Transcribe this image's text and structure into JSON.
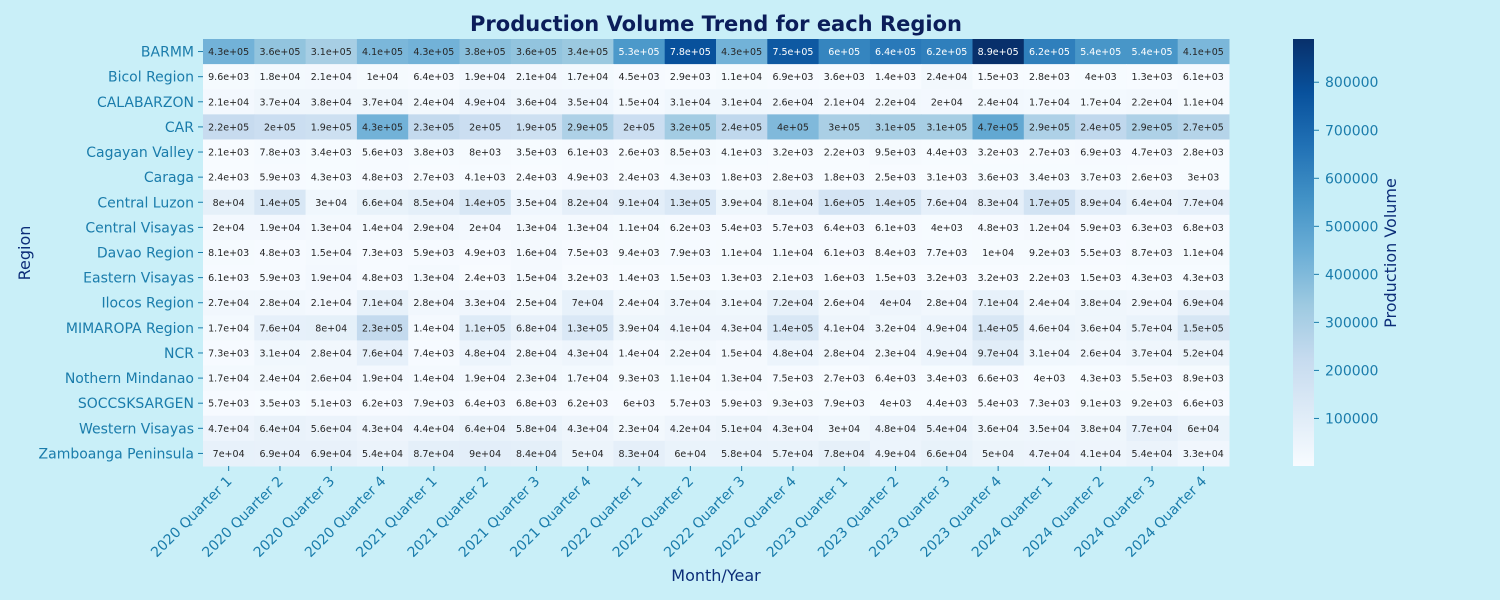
{
  "chart_data": {
    "type": "heatmap",
    "title": "Production Volume Trend for each Region",
    "xlabel": "Month/Year",
    "ylabel": "Region",
    "colorbar_label": "Production Volume",
    "colorbar_ticks": [
      "100000",
      "200000",
      "300000",
      "400000",
      "500000",
      "600000",
      "700000",
      "800000"
    ],
    "colorbar_tick_values": [
      100000,
      200000,
      300000,
      400000,
      500000,
      600000,
      700000,
      800000
    ],
    "vmin": 1000,
    "vmax": 890000,
    "colormap": "Blues",
    "x_categories": [
      "2020 Quarter 1",
      "2020 Quarter 2",
      "2020 Quarter 3",
      "2020 Quarter 4",
      "2021 Quarter 1",
      "2021 Quarter 2",
      "2021 Quarter 3",
      "2021 Quarter 4",
      "2022 Quarter 1",
      "2022 Quarter 2",
      "2022 Quarter 3",
      "2022 Quarter 4",
      "2023 Quarter 1",
      "2023 Quarter 2",
      "2023 Quarter 3",
      "2023 Quarter 4",
      "2024 Quarter 1",
      "2024 Quarter 2",
      "2024 Quarter 3",
      "2024 Quarter 4"
    ],
    "y_categories": [
      "BARMM",
      "Bicol Region",
      "CALABARZON",
      "CAR",
      "Cagayan Valley",
      "Caraga",
      "Central Luzon",
      "Central Visayas",
      "Davao Region",
      "Eastern Visayas",
      "Ilocos Region",
      "MIMAROPA Region",
      "NCR",
      "Nothern Mindanao",
      "SOCCSKSARGEN",
      "Western Visayas",
      "Zamboanga Peninsula"
    ],
    "annotations": [
      [
        "4.3e+05",
        "3.6e+05",
        "3.1e+05",
        "4.1e+05",
        "4.3e+05",
        "3.8e+05",
        "3.6e+05",
        "3.4e+05",
        "5.3e+05",
        "7.8e+05",
        "4.3e+05",
        "7.5e+05",
        "6e+05",
        "6.4e+05",
        "6.2e+05",
        "8.9e+05",
        "6.2e+05",
        "5.4e+05",
        "5.4e+05",
        "4.1e+05"
      ],
      [
        "9.6e+03",
        "1.8e+04",
        "2.1e+04",
        "1e+04",
        "6.4e+03",
        "1.9e+04",
        "2.1e+04",
        "1.7e+04",
        "4.5e+03",
        "2.9e+03",
        "1.1e+04",
        "6.9e+03",
        "3.6e+03",
        "1.4e+03",
        "2.4e+04",
        "1.5e+03",
        "2.8e+03",
        "4e+03",
        "1.3e+03",
        "6.1e+03"
      ],
      [
        "2.1e+04",
        "3.7e+04",
        "3.8e+04",
        "3.7e+04",
        "2.4e+04",
        "4.9e+04",
        "3.6e+04",
        "3.5e+04",
        "1.5e+04",
        "3.1e+04",
        "3.1e+04",
        "2.6e+04",
        "2.1e+04",
        "2.2e+04",
        "2e+04",
        "2.4e+04",
        "1.7e+04",
        "1.7e+04",
        "2.2e+04",
        "1.1e+04"
      ],
      [
        "2.2e+05",
        "2e+05",
        "1.9e+05",
        "4.3e+05",
        "2.3e+05",
        "2e+05",
        "1.9e+05",
        "2.9e+05",
        "2e+05",
        "3.2e+05",
        "2.4e+05",
        "4e+05",
        "3e+05",
        "3.1e+05",
        "3.1e+05",
        "4.7e+05",
        "2.9e+05",
        "2.4e+05",
        "2.9e+05",
        "2.7e+05"
      ],
      [
        "2.1e+03",
        "7.8e+03",
        "3.4e+03",
        "5.6e+03",
        "3.8e+03",
        "8e+03",
        "3.5e+03",
        "6.1e+03",
        "2.6e+03",
        "8.5e+03",
        "4.1e+03",
        "3.2e+03",
        "2.2e+03",
        "9.5e+03",
        "4.4e+03",
        "3.2e+03",
        "2.7e+03",
        "6.9e+03",
        "4.7e+03",
        "2.8e+03"
      ],
      [
        "2.4e+03",
        "5.9e+03",
        "4.3e+03",
        "4.8e+03",
        "2.7e+03",
        "4.1e+03",
        "2.4e+03",
        "4.9e+03",
        "2.4e+03",
        "4.3e+03",
        "1.8e+03",
        "2.8e+03",
        "1.8e+03",
        "2.5e+03",
        "3.1e+03",
        "3.6e+03",
        "3.4e+03",
        "3.7e+03",
        "2.6e+03",
        "3e+03"
      ],
      [
        "8e+04",
        "1.4e+05",
        "3e+04",
        "6.6e+04",
        "8.5e+04",
        "1.4e+05",
        "3.5e+04",
        "8.2e+04",
        "9.1e+04",
        "1.3e+05",
        "3.9e+04",
        "8.1e+04",
        "1.6e+05",
        "1.4e+05",
        "7.6e+04",
        "8.3e+04",
        "1.7e+05",
        "8.9e+04",
        "6.4e+04",
        "7.7e+04"
      ],
      [
        "2e+04",
        "1.9e+04",
        "1.3e+04",
        "1.4e+04",
        "2.9e+04",
        "2e+04",
        "1.3e+04",
        "1.3e+04",
        "1.1e+04",
        "6.2e+03",
        "5.4e+03",
        "5.7e+03",
        "6.4e+03",
        "6.1e+03",
        "4e+03",
        "4.8e+03",
        "1.2e+04",
        "5.9e+03",
        "6.3e+03",
        "6.8e+03"
      ],
      [
        "8.1e+03",
        "4.8e+03",
        "1.5e+04",
        "7.3e+03",
        "5.9e+03",
        "4.9e+03",
        "1.6e+04",
        "7.5e+03",
        "9.4e+03",
        "7.9e+03",
        "1.1e+04",
        "1.1e+04",
        "6.1e+03",
        "8.4e+03",
        "7.7e+03",
        "1e+04",
        "9.2e+03",
        "5.5e+03",
        "8.7e+03",
        "1.1e+04"
      ],
      [
        "6.1e+03",
        "5.9e+03",
        "1.9e+04",
        "4.8e+03",
        "1.3e+04",
        "2.4e+03",
        "1.5e+04",
        "3.2e+03",
        "1.4e+03",
        "1.5e+03",
        "1.3e+03",
        "2.1e+03",
        "1.6e+03",
        "1.5e+03",
        "3.2e+03",
        "3.2e+03",
        "2.2e+03",
        "1.5e+03",
        "4.3e+03",
        "4.3e+03"
      ],
      [
        "2.7e+04",
        "2.8e+04",
        "2.1e+04",
        "7.1e+04",
        "2.8e+04",
        "3.3e+04",
        "2.5e+04",
        "7e+04",
        "2.4e+04",
        "3.7e+04",
        "3.1e+04",
        "7.2e+04",
        "2.6e+04",
        "4e+04",
        "2.8e+04",
        "7.1e+04",
        "2.4e+04",
        "3.8e+04",
        "2.9e+04",
        "6.9e+04"
      ],
      [
        "1.7e+04",
        "7.6e+04",
        "8e+04",
        "2.3e+05",
        "1.4e+04",
        "1.1e+05",
        "6.8e+04",
        "1.3e+05",
        "3.9e+04",
        "4.1e+04",
        "4.3e+04",
        "1.4e+05",
        "4.1e+04",
        "3.2e+04",
        "4.9e+04",
        "1.4e+05",
        "4.6e+04",
        "3.6e+04",
        "5.7e+04",
        "1.5e+05"
      ],
      [
        "7.3e+03",
        "3.1e+04",
        "2.8e+04",
        "7.6e+04",
        "7.4e+03",
        "4.8e+04",
        "2.8e+04",
        "4.3e+04",
        "1.4e+04",
        "2.2e+04",
        "1.5e+04",
        "4.8e+04",
        "2.8e+04",
        "2.3e+04",
        "4.9e+04",
        "9.7e+04",
        "3.1e+04",
        "2.6e+04",
        "3.7e+04",
        "5.2e+04"
      ],
      [
        "1.7e+04",
        "2.4e+04",
        "2.6e+04",
        "1.9e+04",
        "1.4e+04",
        "1.9e+04",
        "2.3e+04",
        "1.7e+04",
        "9.3e+03",
        "1.1e+04",
        "1.3e+04",
        "7.5e+03",
        "2.7e+03",
        "6.4e+03",
        "3.4e+03",
        "6.6e+03",
        "4e+03",
        "4.3e+03",
        "5.5e+03",
        "8.9e+03"
      ],
      [
        "5.7e+03",
        "3.5e+03",
        "5.1e+03",
        "6.2e+03",
        "7.9e+03",
        "6.4e+03",
        "6.8e+03",
        "6.2e+03",
        "6e+03",
        "5.7e+03",
        "5.9e+03",
        "9.3e+03",
        "7.9e+03",
        "4e+03",
        "4.4e+03",
        "5.4e+03",
        "7.3e+03",
        "9.1e+03",
        "9.2e+03",
        "6.6e+03"
      ],
      [
        "4.7e+04",
        "6.4e+04",
        "5.6e+04",
        "4.3e+04",
        "4.4e+04",
        "6.4e+04",
        "5.8e+04",
        "4.3e+04",
        "2.3e+04",
        "4.2e+04",
        "5.1e+04",
        "4.3e+04",
        "3e+04",
        "4.8e+04",
        "5.4e+04",
        "3.6e+04",
        "3.5e+04",
        "3.8e+04",
        "7.7e+04",
        "6e+04"
      ],
      [
        "7e+04",
        "6.9e+04",
        "6.9e+04",
        "5.4e+04",
        "8.7e+04",
        "9e+04",
        "8.4e+04",
        "5e+04",
        "8.3e+04",
        "6e+04",
        "5.8e+04",
        "5.7e+04",
        "7.8e+04",
        "4.9e+04",
        "6.6e+04",
        "5e+04",
        "4.7e+04",
        "4.1e+04",
        "5.4e+04",
        "3.3e+04"
      ]
    ]
  }
}
